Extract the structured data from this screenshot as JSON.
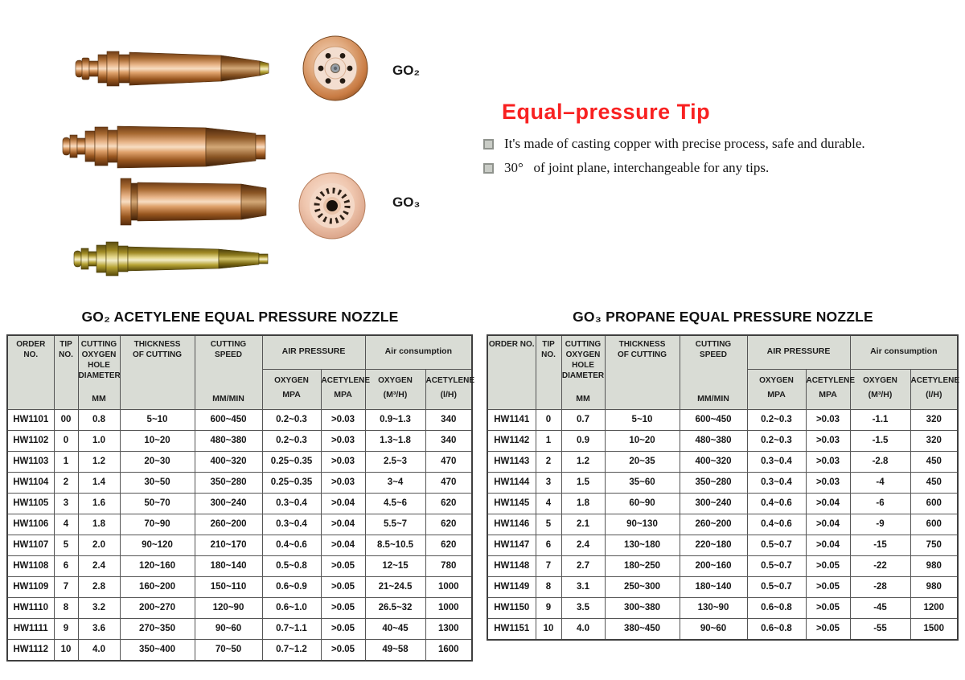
{
  "colors": {
    "accent_red": "#f82121",
    "table_header_bg": "#d9dcd5",
    "table_border": "#555555",
    "copper": "#cf8a4e",
    "brass": "#c2b23f"
  },
  "hero": {
    "heading": "Equal–pressure Tip",
    "bullets": [
      "It's made of casting copper with precise process, safe and durable.",
      "30°   of joint plane, interchangeable for any tips."
    ],
    "go2_label": "GO₂",
    "go3_label": "GO₃"
  },
  "table_header": {
    "order_no": "ORDER NO.",
    "tip_no": "TIP\nNO.",
    "cutting_oxygen_hole_diameter": "CUTTING\nOXYGEN\nHOLE\nDIAMETER",
    "mm": "MM",
    "thickness_of_cutting": "THICKNESS\nOF CUTTING",
    "cutting_speed": "CUTTING\nSPEED",
    "mm_min": "MM/MIN",
    "air_pressure": "AIR PRESSURE",
    "air_consumption": "Air consumption",
    "oxygen": "OXYGEN",
    "acetylene": "ACETYLENE",
    "mpa": "MPA",
    "m3_h": "(M³/H)",
    "l_h": "(l/H)"
  },
  "tables": [
    {
      "title": "GO₂ ACETYLENE EQUAL PRESSURE NOZZLE",
      "rows": [
        [
          "HW1101",
          "00",
          "0.8",
          "5~10",
          "600~450",
          "0.2~0.3",
          ">0.03",
          "0.9~1.3",
          "340"
        ],
        [
          "HW1102",
          "0",
          "1.0",
          "10~20",
          "480~380",
          "0.2~0.3",
          ">0.03",
          "1.3~1.8",
          "340"
        ],
        [
          "HW1103",
          "1",
          "1.2",
          "20~30",
          "400~320",
          "0.25~0.35",
          ">0.03",
          "2.5~3",
          "470"
        ],
        [
          "HW1104",
          "2",
          "1.4",
          "30~50",
          "350~280",
          "0.25~0.35",
          ">0.03",
          "3~4",
          "470"
        ],
        [
          "HW1105",
          "3",
          "1.6",
          "50~70",
          "300~240",
          "0.3~0.4",
          ">0.04",
          "4.5~6",
          "620"
        ],
        [
          "HW1106",
          "4",
          "1.8",
          "70~90",
          "260~200",
          "0.3~0.4",
          ">0.04",
          "5.5~7",
          "620"
        ],
        [
          "HW1107",
          "5",
          "2.0",
          "90~120",
          "210~170",
          "0.4~0.6",
          ">0.04",
          "8.5~10.5",
          "620"
        ],
        [
          "HW1108",
          "6",
          "2.4",
          "120~160",
          "180~140",
          "0.5~0.8",
          ">0.05",
          "12~15",
          "780"
        ],
        [
          "HW1109",
          "7",
          "2.8",
          "160~200",
          "150~110",
          "0.6~0.9",
          ">0.05",
          "21~24.5",
          "1000"
        ],
        [
          "HW1110",
          "8",
          "3.2",
          "200~270",
          "120~90",
          "0.6~1.0",
          ">0.05",
          "26.5~32",
          "1000"
        ],
        [
          "HW1111",
          "9",
          "3.6",
          "270~350",
          "90~60",
          "0.7~1.1",
          ">0.05",
          "40~45",
          "1300"
        ],
        [
          "HW1112",
          "10",
          "4.0",
          "350~400",
          "70~50",
          "0.7~1.2",
          ">0.05",
          "49~58",
          "1600"
        ]
      ]
    },
    {
      "title": "GO₃ PROPANE EQUAL PRESSURE NOZZLE",
      "rows": [
        [
          "HW1141",
          "0",
          "0.7",
          "5~10",
          "600~450",
          "0.2~0.3",
          ">0.03",
          "-1.1",
          "320"
        ],
        [
          "HW1142",
          "1",
          "0.9",
          "10~20",
          "480~380",
          "0.2~0.3",
          ">0.03",
          "-1.5",
          "320"
        ],
        [
          "HW1143",
          "2",
          "1.2",
          "20~35",
          "400~320",
          "0.3~0.4",
          ">0.03",
          "-2.8",
          "450"
        ],
        [
          "HW1144",
          "3",
          "1.5",
          "35~60",
          "350~280",
          "0.3~0.4",
          ">0.03",
          "-4",
          "450"
        ],
        [
          "HW1145",
          "4",
          "1.8",
          "60~90",
          "300~240",
          "0.4~0.6",
          ">0.04",
          "-6",
          "600"
        ],
        [
          "HW1146",
          "5",
          "2.1",
          "90~130",
          "260~200",
          "0.4~0.6",
          ">0.04",
          "-9",
          "600"
        ],
        [
          "HW1147",
          "6",
          "2.4",
          "130~180",
          "220~180",
          "0.5~0.7",
          ">0.04",
          "-15",
          "750"
        ],
        [
          "HW1148",
          "7",
          "2.7",
          "180~250",
          "200~160",
          "0.5~0.7",
          ">0.05",
          "-22",
          "980"
        ],
        [
          "HW1149",
          "8",
          "3.1",
          "250~300",
          "180~140",
          "0.5~0.7",
          ">0.05",
          "-28",
          "980"
        ],
        [
          "HW1150",
          "9",
          "3.5",
          "300~380",
          "130~90",
          "0.6~0.8",
          ">0.05",
          "-45",
          "1200"
        ],
        [
          "HW1151",
          "10",
          "4.0",
          "380~450",
          "90~60",
          "0.6~0.8",
          ">0.05",
          "-55",
          "1500"
        ]
      ]
    }
  ]
}
